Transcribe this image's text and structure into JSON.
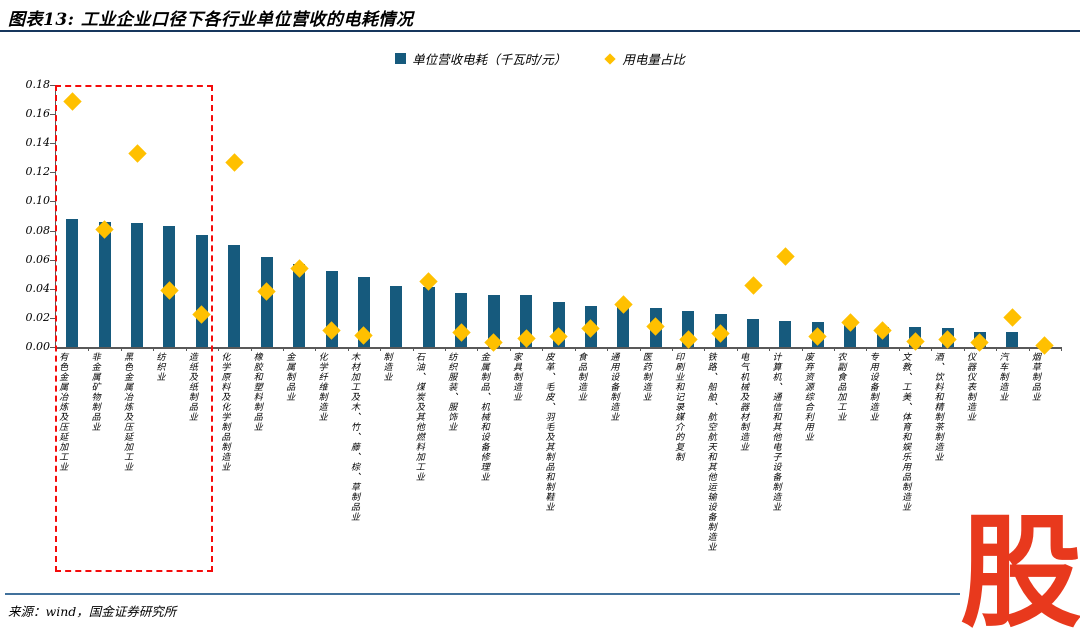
{
  "title": "图表13: 工业企业口径下各行业单位营收的电耗情况",
  "legend": {
    "items": [
      {
        "label": "单位营收电耗（千瓦时/元）",
        "marker": "square",
        "color": "#165A7D"
      },
      {
        "label": "用电量占比",
        "marker": "diamond",
        "color": "#FFC000"
      }
    ]
  },
  "source": "来源：wind，国金证券研究所",
  "logo_char": "股",
  "colors": {
    "bar": "#165A7D",
    "diamond": "#FFC000",
    "highlight_box": "#F40B0B",
    "title_rule": "#17365d",
    "bottom_rule": "#41719C",
    "axis": "#595959",
    "logo": "#E8391D"
  },
  "chart_data": {
    "type": "bar",
    "title": "工业企业口径下各行业单位营收的电耗情况",
    "xlabel": "",
    "ylabel": "",
    "ylim": [
      0,
      0.18
    ],
    "yticks": [
      "0.00",
      "0.02",
      "0.04",
      "0.06",
      "0.08",
      "0.10",
      "0.12",
      "0.14",
      "0.16",
      "0.18"
    ],
    "grid": false,
    "legend_position": "top",
    "categories": [
      "有色金属冶炼及压延加工业",
      "非金属矿物制品业",
      "黑色金属冶炼及压延加工业",
      "纺织业",
      "造纸及纸制品业",
      "化学原料及化学制品制造业",
      "橡胶和塑料制品业",
      "金属制品业",
      "化学纤维制造业",
      "木材加工及木、竹、藤、棕、草制品业",
      "制造业",
      "石油、煤炭及其他燃料加工业",
      "纺织服装、服饰业",
      "金属制品、机械和设备修理业",
      "家具制造业",
      "皮革、毛皮、羽毛及其制品和制鞋业",
      "食品制造业",
      "通用设备制造业",
      "医药制造业",
      "印刷业和记录媒介的复制",
      "铁路、船舶、航空航天和其他运输设备制造业",
      "电气机械及器材制造业",
      "计算机、通信和其他电子设备制造业",
      "废弃资源综合利用业",
      "农副食品加工业",
      "专用设备制造业",
      "文教、工美、体育和娱乐用品制造业",
      "酒、饮料和精制茶制造业",
      "仪器仪表制造业",
      "汽车制造业",
      "烟草制品业"
    ],
    "series": [
      {
        "name": "单位营收电耗（千瓦时/元）",
        "type": "bar",
        "color": "#165A7D",
        "values": [
          0.088,
          0.086,
          0.085,
          0.083,
          0.077,
          0.07,
          0.062,
          0.057,
          0.052,
          0.048,
          0.042,
          0.041,
          0.037,
          0.036,
          0.036,
          0.031,
          0.028,
          0.028,
          0.027,
          0.025,
          0.023,
          0.019,
          0.018,
          0.017,
          0.016,
          0.014,
          0.014,
          0.013,
          0.01,
          0.01,
          0.001
        ]
      },
      {
        "name": "用电量占比",
        "type": "scatter-diamond",
        "color": "#FFC000",
        "values": [
          0.169,
          0.081,
          0.133,
          0.039,
          0.022,
          0.127,
          0.038,
          0.054,
          0.011,
          0.008,
          null,
          0.045,
          0.01,
          0.003,
          0.006,
          0.007,
          0.013,
          0.029,
          0.014,
          0.005,
          0.009,
          0.042,
          0.062,
          0.007,
          0.017,
          0.011,
          0.004,
          0.005,
          0.003,
          0.02,
          0.001
        ]
      }
    ],
    "annotations": {
      "highlight_box": {
        "category_start_index": 0,
        "category_end_index": 4,
        "style": "red-dashed-rectangle"
      }
    }
  }
}
